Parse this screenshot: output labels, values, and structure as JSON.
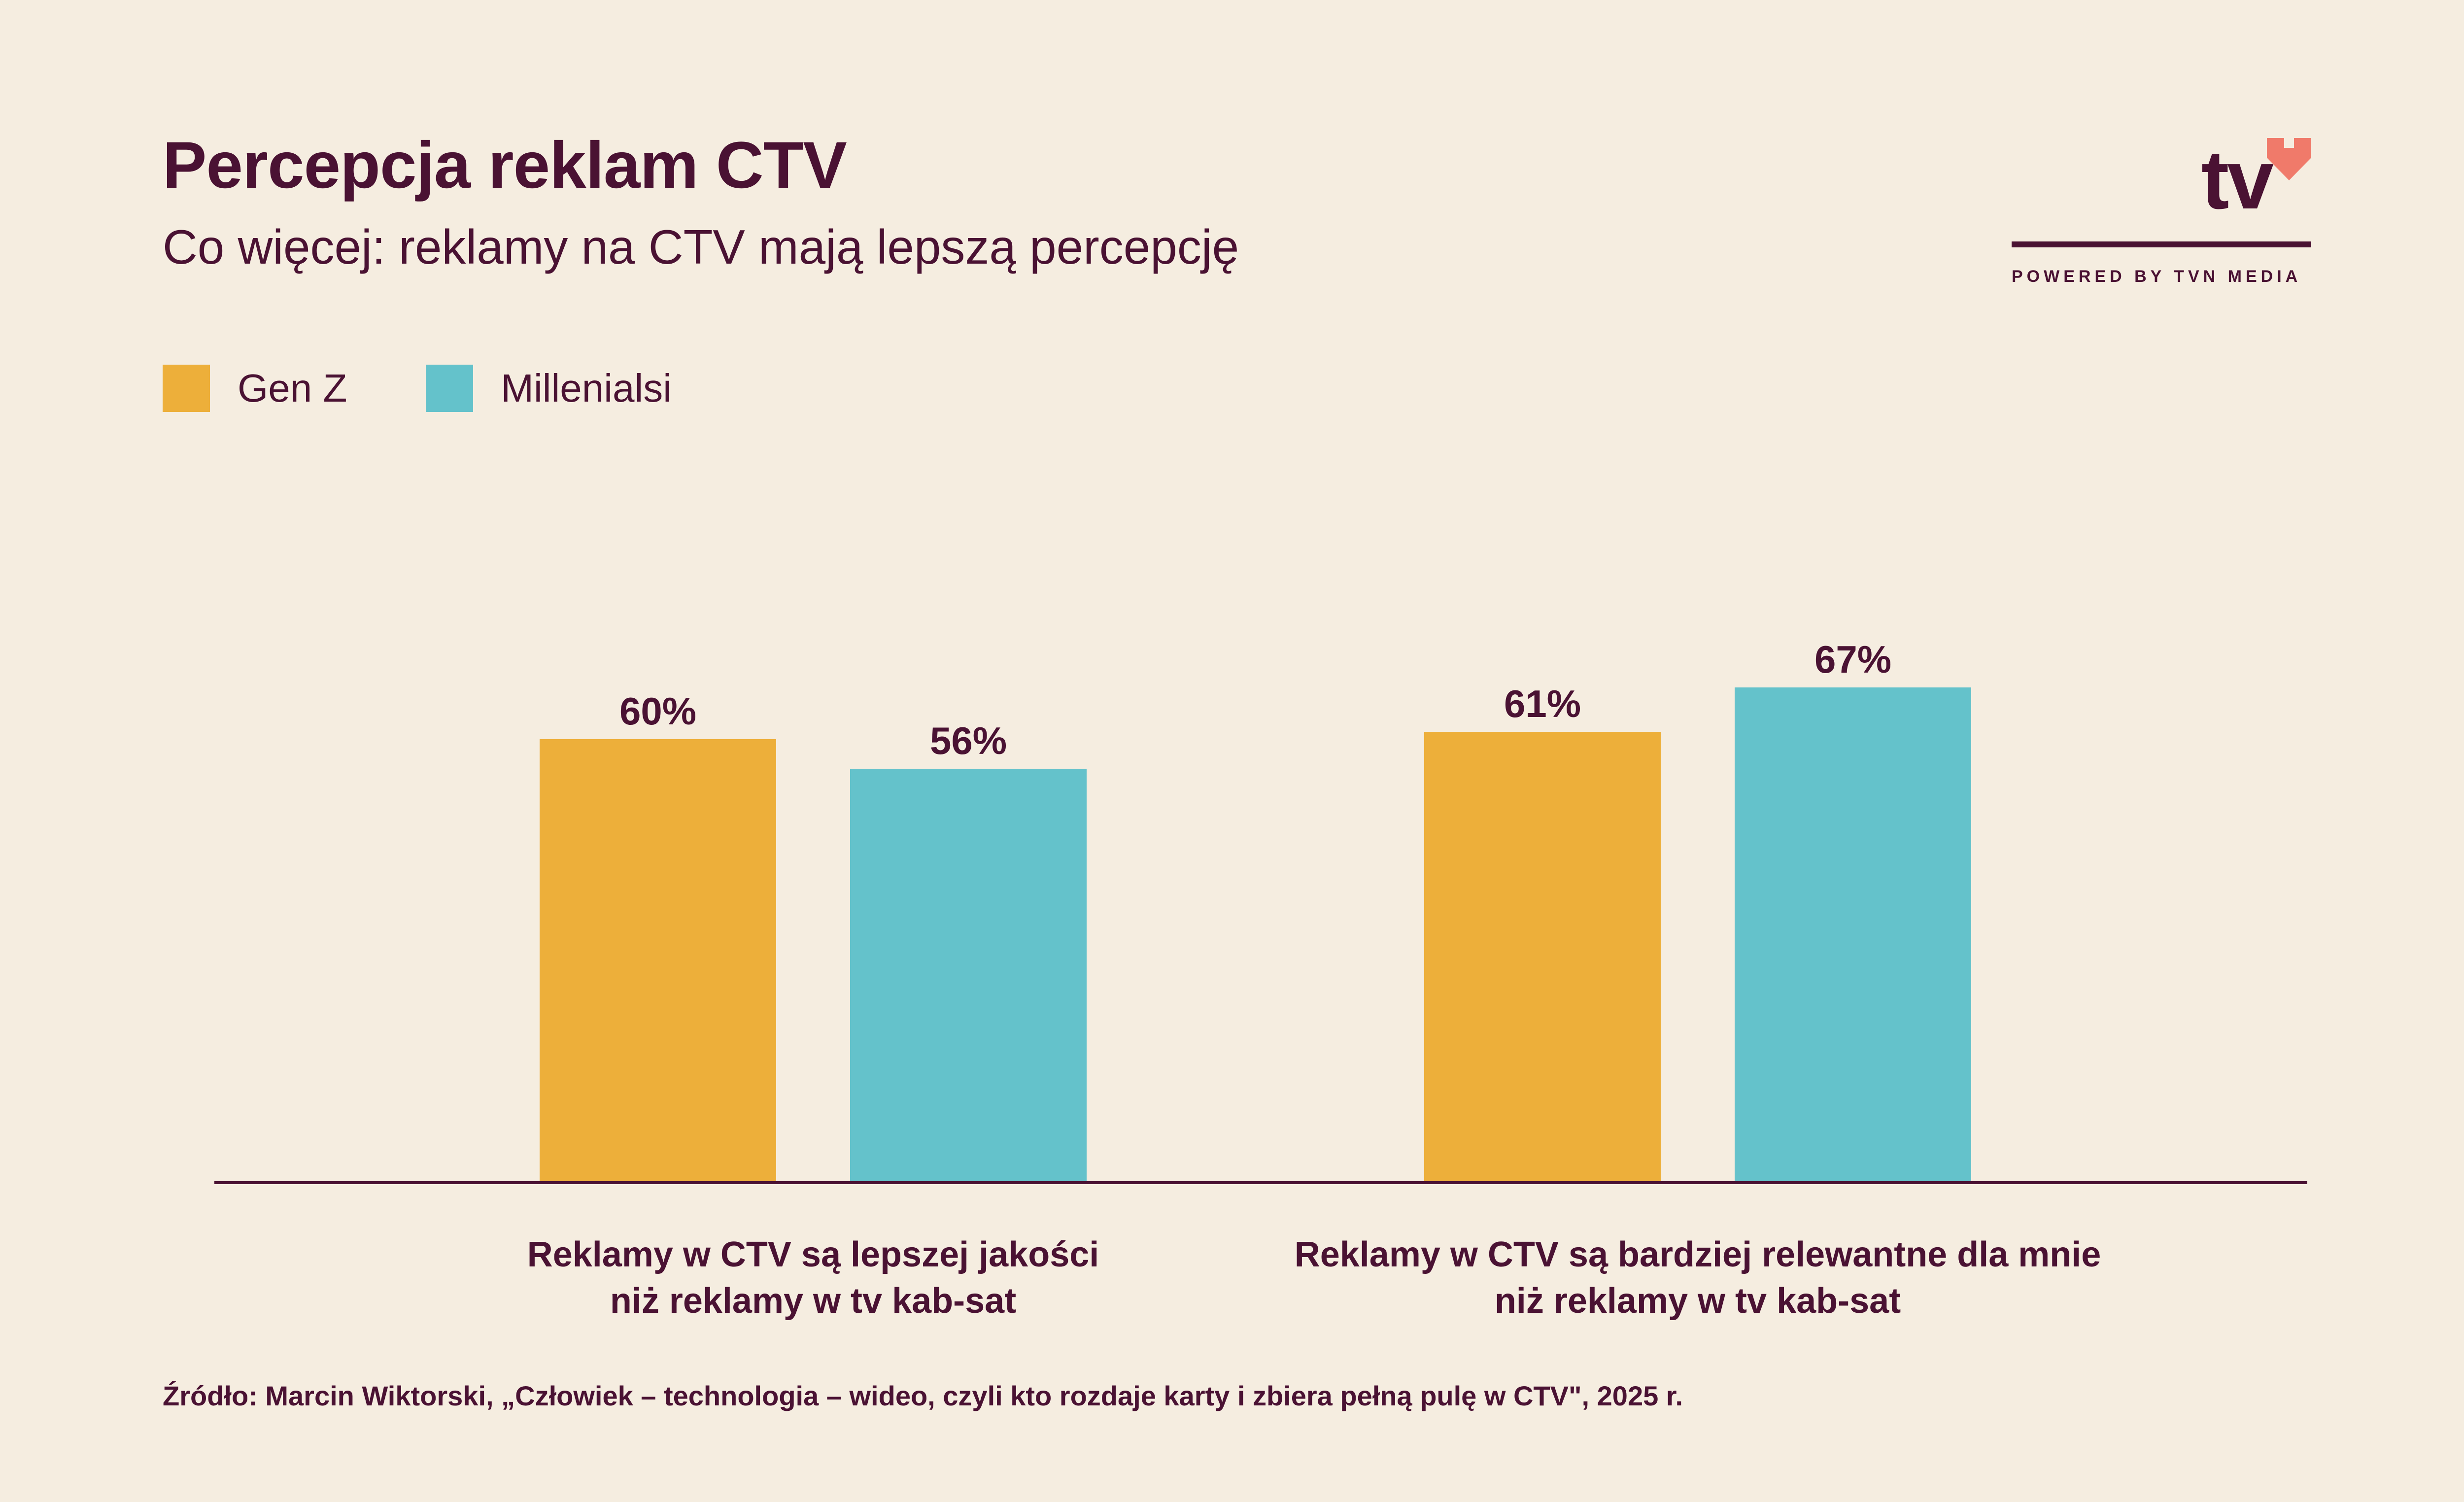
{
  "header": {
    "title": "Percepcja reklam CTV",
    "subtitle": "Co więcej: reklamy na CTV mają lepszą percepcję"
  },
  "logo": {
    "text": "tv",
    "tagline": "POWERED BY TVN MEDIA",
    "heart_color": "#f07a6a"
  },
  "colors": {
    "background": "#f5ede0",
    "text": "#4a1233",
    "gen_z": "#edaf3a",
    "millenials": "#64c2cb"
  },
  "chart_data": {
    "type": "bar",
    "title": "Percepcja reklam CTV",
    "subtitle": "Co więcej: reklamy na CTV mają lepszą percepcję",
    "categories": [
      [
        "Reklamy w CTV są lepszej jakości",
        "niż reklamy w tv kab-sat"
      ],
      [
        "Reklamy w CTV są bardziej relewantne dla mnie",
        "niż reklamy w tv kab-sat"
      ]
    ],
    "series": [
      {
        "name": "Gen Z",
        "color": "#edaf3a",
        "values": [
          60,
          61
        ],
        "labels": [
          "60%",
          "61%"
        ]
      },
      {
        "name": "Millenialsi",
        "color": "#64c2cb",
        "values": [
          56,
          67
        ],
        "labels": [
          "56%",
          "67%"
        ]
      }
    ],
    "unit": "%",
    "ylim": [
      0,
      100
    ],
    "grid": false,
    "legend_position": "top-left"
  },
  "source": "Źródło: Marcin Wiktorski, „Człowiek – technologia – wideo, czyli kto rozdaje karty i zbiera pełną pulę w CTV\", 2025 r."
}
